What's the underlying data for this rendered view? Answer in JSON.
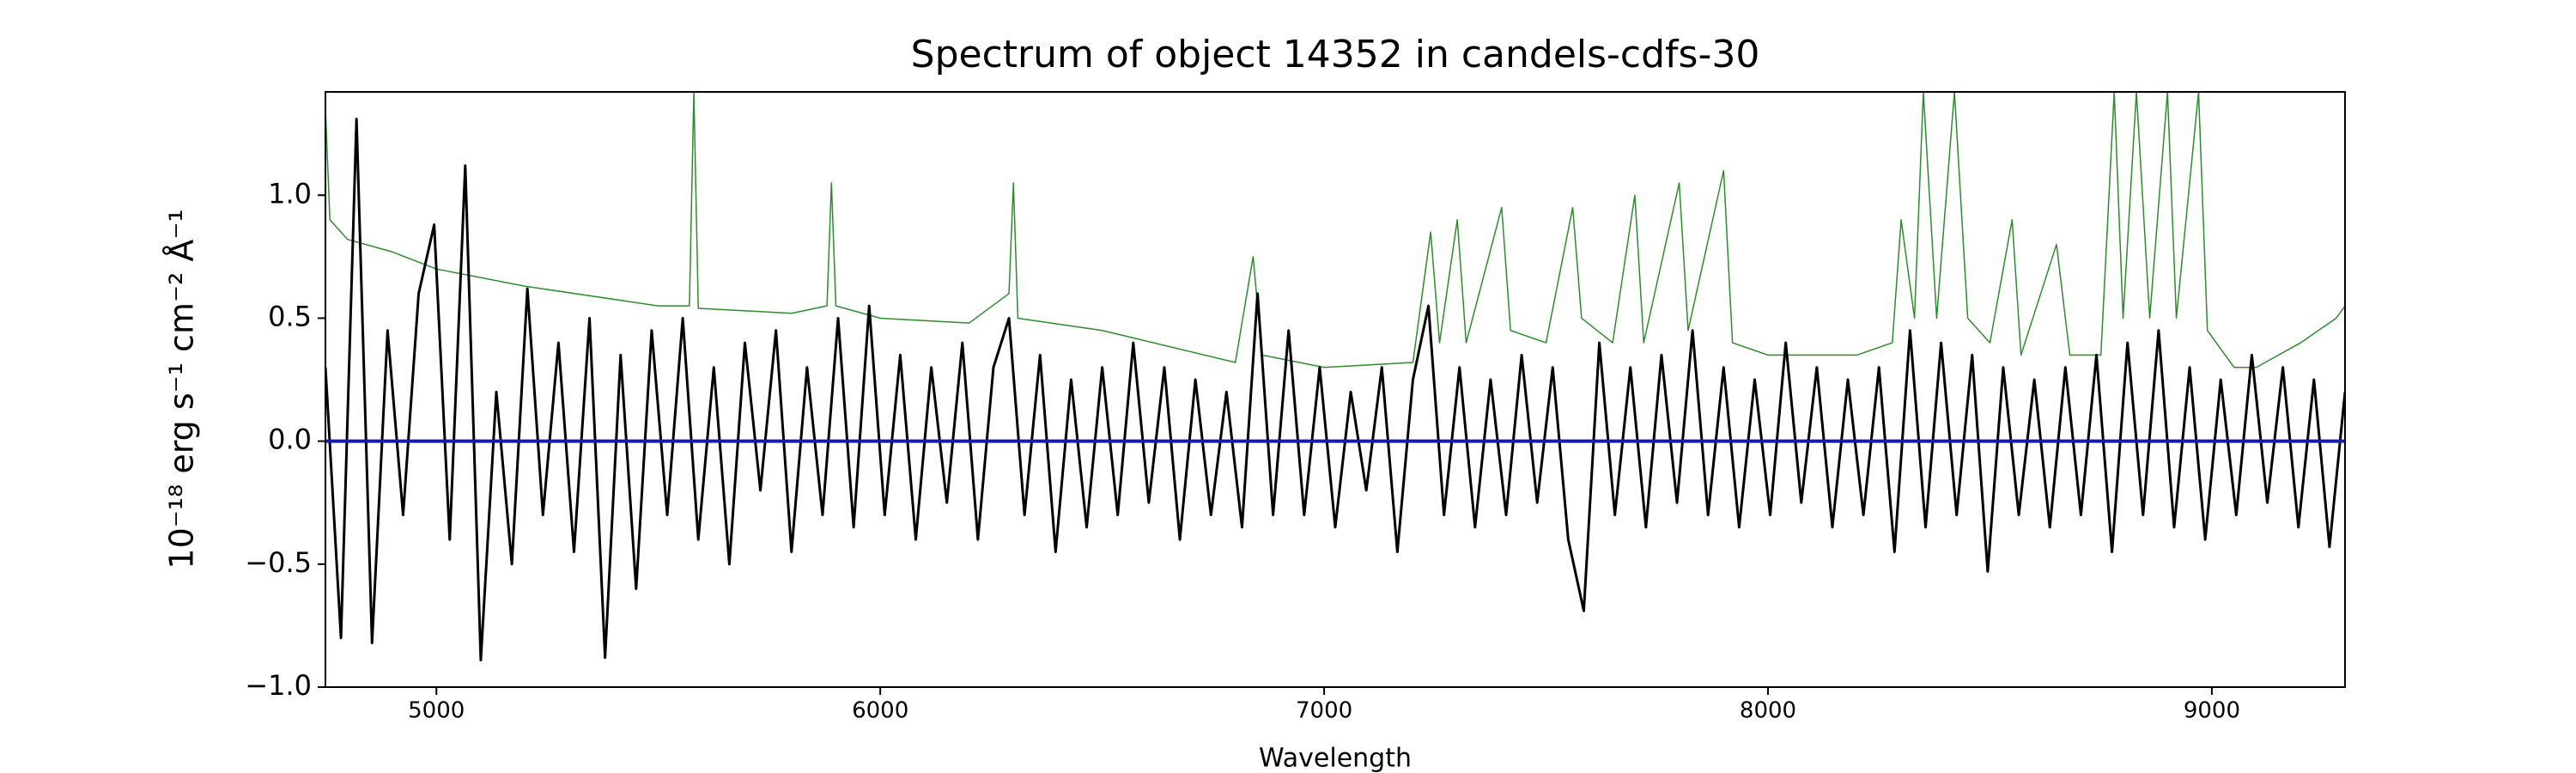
{
  "chart_data": {
    "type": "line",
    "title": "Spectrum of object 14352 in candels-cdfs-30",
    "x_label": "Wavelength",
    "y_label": "10⁻¹⁸ erg s⁻¹ cm⁻² Å⁻¹",
    "xlim": [
      4750,
      9300
    ],
    "ylim": [
      -1.0,
      1.42
    ],
    "xticks": [
      5000,
      6000,
      7000,
      8000,
      9000
    ],
    "yticks": [
      {
        "value": -1.0,
        "label": "−1.0"
      },
      {
        "value": -0.5,
        "label": "−0.5"
      },
      {
        "value": 0.0,
        "label": "0.0"
      },
      0.5,
      {
        "value": 1.0,
        "label": "1.0"
      }
    ],
    "grid": false,
    "series": [
      {
        "color": "#2e8b2e",
        "width": 1.5,
        "x": [
          4750,
          4760,
          4800,
          4900,
          5000,
          5200,
          5500,
          5570,
          5580,
          5590,
          5800,
          5880,
          5890,
          5900,
          6000,
          6200,
          6290,
          6300,
          6310,
          6500,
          6800,
          6840,
          6860,
          7000,
          7200,
          7240,
          7260,
          7300,
          7320,
          7400,
          7420,
          7500,
          7560,
          7580,
          7650,
          7700,
          7720,
          7800,
          7820,
          7900,
          7920,
          8000,
          8100,
          8200,
          8280,
          8300,
          8330,
          8350,
          8380,
          8420,
          8450,
          8500,
          8550,
          8570,
          8650,
          8680,
          8750,
          8780,
          8800,
          8830,
          8860,
          8900,
          8920,
          8970,
          8990,
          9050,
          9100,
          9200,
          9280,
          9300
        ],
        "values": [
          1.35,
          0.9,
          0.82,
          0.77,
          0.7,
          0.63,
          0.55,
          0.55,
          1.42,
          0.54,
          0.52,
          0.55,
          1.05,
          0.55,
          0.5,
          0.48,
          0.6,
          1.05,
          0.5,
          0.45,
          0.32,
          0.75,
          0.35,
          0.3,
          0.32,
          0.85,
          0.4,
          0.9,
          0.4,
          0.95,
          0.45,
          0.4,
          0.95,
          0.5,
          0.4,
          1.0,
          0.4,
          1.05,
          0.45,
          1.1,
          0.4,
          0.35,
          0.35,
          0.35,
          0.4,
          0.9,
          0.5,
          1.42,
          0.5,
          1.42,
          0.5,
          0.4,
          0.9,
          0.35,
          0.8,
          0.35,
          0.35,
          1.42,
          0.5,
          1.42,
          0.5,
          1.42,
          0.5,
          1.42,
          0.45,
          0.3,
          0.3,
          0.4,
          0.5,
          0.55
        ]
      },
      {
        "color": "#000000",
        "width": 3,
        "x": [
          4750,
          4785,
          4820,
          4855,
          4890,
          4925,
          4960,
          4995,
          5030,
          5065,
          5100,
          5135,
          5170,
          5205,
          5240,
          5275,
          5310,
          5345,
          5380,
          5415,
          5450,
          5485,
          5520,
          5555,
          5590,
          5625,
          5660,
          5695,
          5730,
          5765,
          5800,
          5835,
          5870,
          5905,
          5940,
          5975,
          6010,
          6045,
          6080,
          6115,
          6150,
          6185,
          6220,
          6255,
          6290,
          6325,
          6360,
          6395,
          6430,
          6465,
          6500,
          6535,
          6570,
          6605,
          6640,
          6675,
          6710,
          6745,
          6780,
          6815,
          6850,
          6885,
          6920,
          6955,
          6990,
          7025,
          7060,
          7095,
          7130,
          7165,
          7200,
          7235,
          7270,
          7305,
          7340,
          7375,
          7410,
          7445,
          7480,
          7515,
          7550,
          7585,
          7620,
          7655,
          7690,
          7725,
          7760,
          7795,
          7830,
          7865,
          7900,
          7935,
          7970,
          8005,
          8040,
          8075,
          8110,
          8145,
          8180,
          8215,
          8250,
          8285,
          8320,
          8355,
          8390,
          8425,
          8460,
          8495,
          8530,
          8565,
          8600,
          8635,
          8670,
          8705,
          8740,
          8775,
          8810,
          8845,
          8880,
          8915,
          8950,
          8985,
          9020,
          9055,
          9090,
          9125,
          9160,
          9195,
          9230,
          9265,
          9300
        ],
        "values": [
          0.3,
          -0.8,
          1.31,
          -0.82,
          0.45,
          -0.3,
          0.6,
          0.88,
          -0.4,
          1.12,
          -0.89,
          0.2,
          -0.5,
          0.62,
          -0.3,
          0.4,
          -0.45,
          0.5,
          -0.88,
          0.35,
          -0.6,
          0.45,
          -0.3,
          0.5,
          -0.4,
          0.3,
          -0.5,
          0.4,
          -0.2,
          0.45,
          -0.45,
          0.3,
          -0.3,
          0.5,
          -0.35,
          0.55,
          -0.3,
          0.35,
          -0.4,
          0.3,
          -0.25,
          0.4,
          -0.4,
          0.3,
          0.5,
          -0.3,
          0.35,
          -0.45,
          0.25,
          -0.35,
          0.3,
          -0.3,
          0.4,
          -0.25,
          0.3,
          -0.4,
          0.25,
          -0.3,
          0.2,
          -0.35,
          0.6,
          -0.3,
          0.45,
          -0.3,
          0.3,
          -0.35,
          0.2,
          -0.2,
          0.3,
          -0.45,
          0.25,
          0.55,
          -0.3,
          0.3,
          -0.35,
          0.25,
          -0.3,
          0.35,
          -0.25,
          0.3,
          -0.4,
          -0.69,
          0.4,
          -0.3,
          0.3,
          -0.35,
          0.35,
          -0.25,
          0.45,
          -0.3,
          0.3,
          -0.35,
          0.25,
          -0.3,
          0.4,
          -0.25,
          0.3,
          -0.35,
          0.25,
          -0.3,
          0.3,
          -0.45,
          0.45,
          -0.35,
          0.4,
          -0.3,
          0.35,
          -0.53,
          0.3,
          -0.3,
          0.25,
          -0.35,
          0.3,
          -0.3,
          0.35,
          -0.45,
          0.4,
          -0.3,
          0.45,
          -0.35,
          0.3,
          -0.4,
          0.25,
          -0.3,
          0.35,
          -0.25,
          0.3,
          -0.35,
          0.25,
          -0.43,
          0.2
        ]
      },
      {
        "color": "#1a1aa6",
        "width": 4,
        "x": [
          4750,
          9300
        ],
        "values": [
          0.0,
          0.0
        ]
      }
    ]
  }
}
